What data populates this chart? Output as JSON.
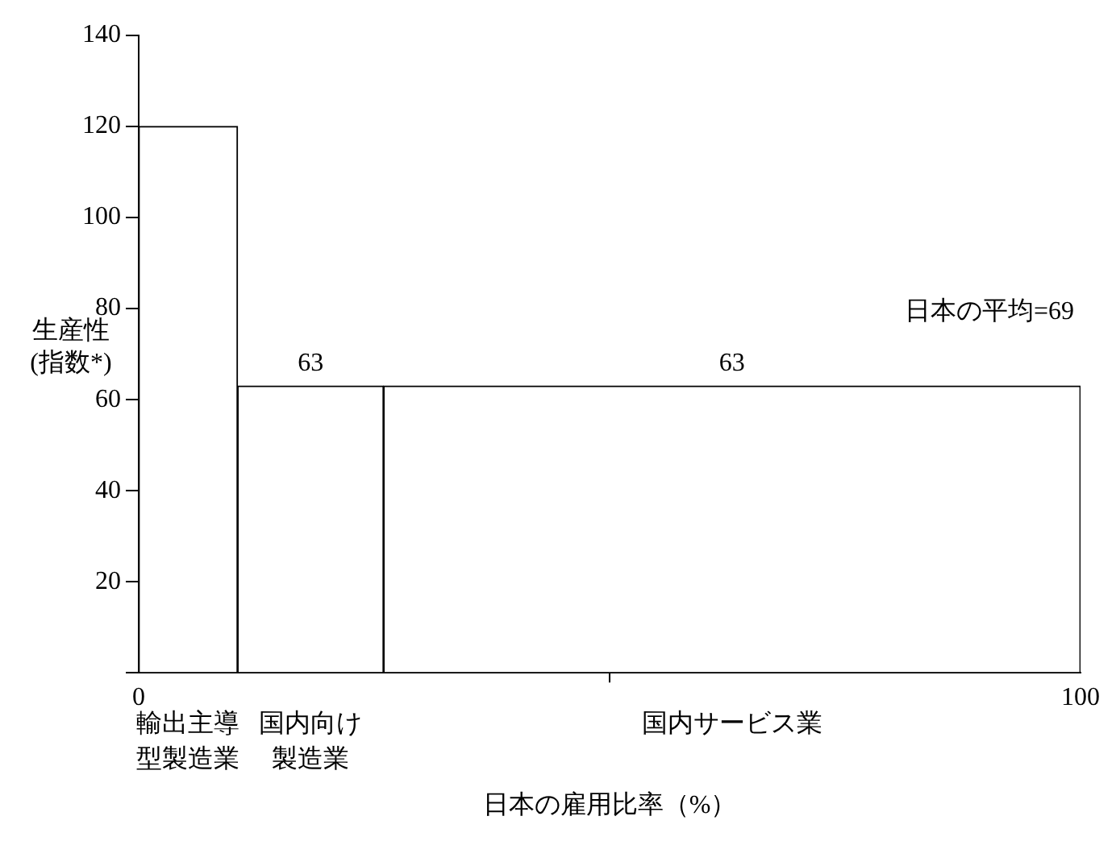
{
  "chart_data": {
    "type": "histogram",
    "xlabel": "日本の雇用比率（%）",
    "ylabel": "生産性(指数*)",
    "bins": [
      0,
      10.5,
      26,
      100
    ],
    "values": [
      120,
      63,
      63
    ],
    "categories": [
      "輸出主導型製造業",
      "国内向け製造業",
      "国内サービス業"
    ],
    "value_labels": [
      null,
      "63",
      "63"
    ],
    "color": "#ffffff",
    "annotations": [
      "日本の平均=69"
    ],
    "xlim": [
      0,
      100
    ],
    "xticks": [
      0,
      100
    ],
    "ylim": [
      0,
      140
    ],
    "yticks": [
      {
        "value": 0,
        "label": null
      },
      20,
      40,
      60,
      80,
      100,
      120,
      140
    ],
    "grid": false
  }
}
